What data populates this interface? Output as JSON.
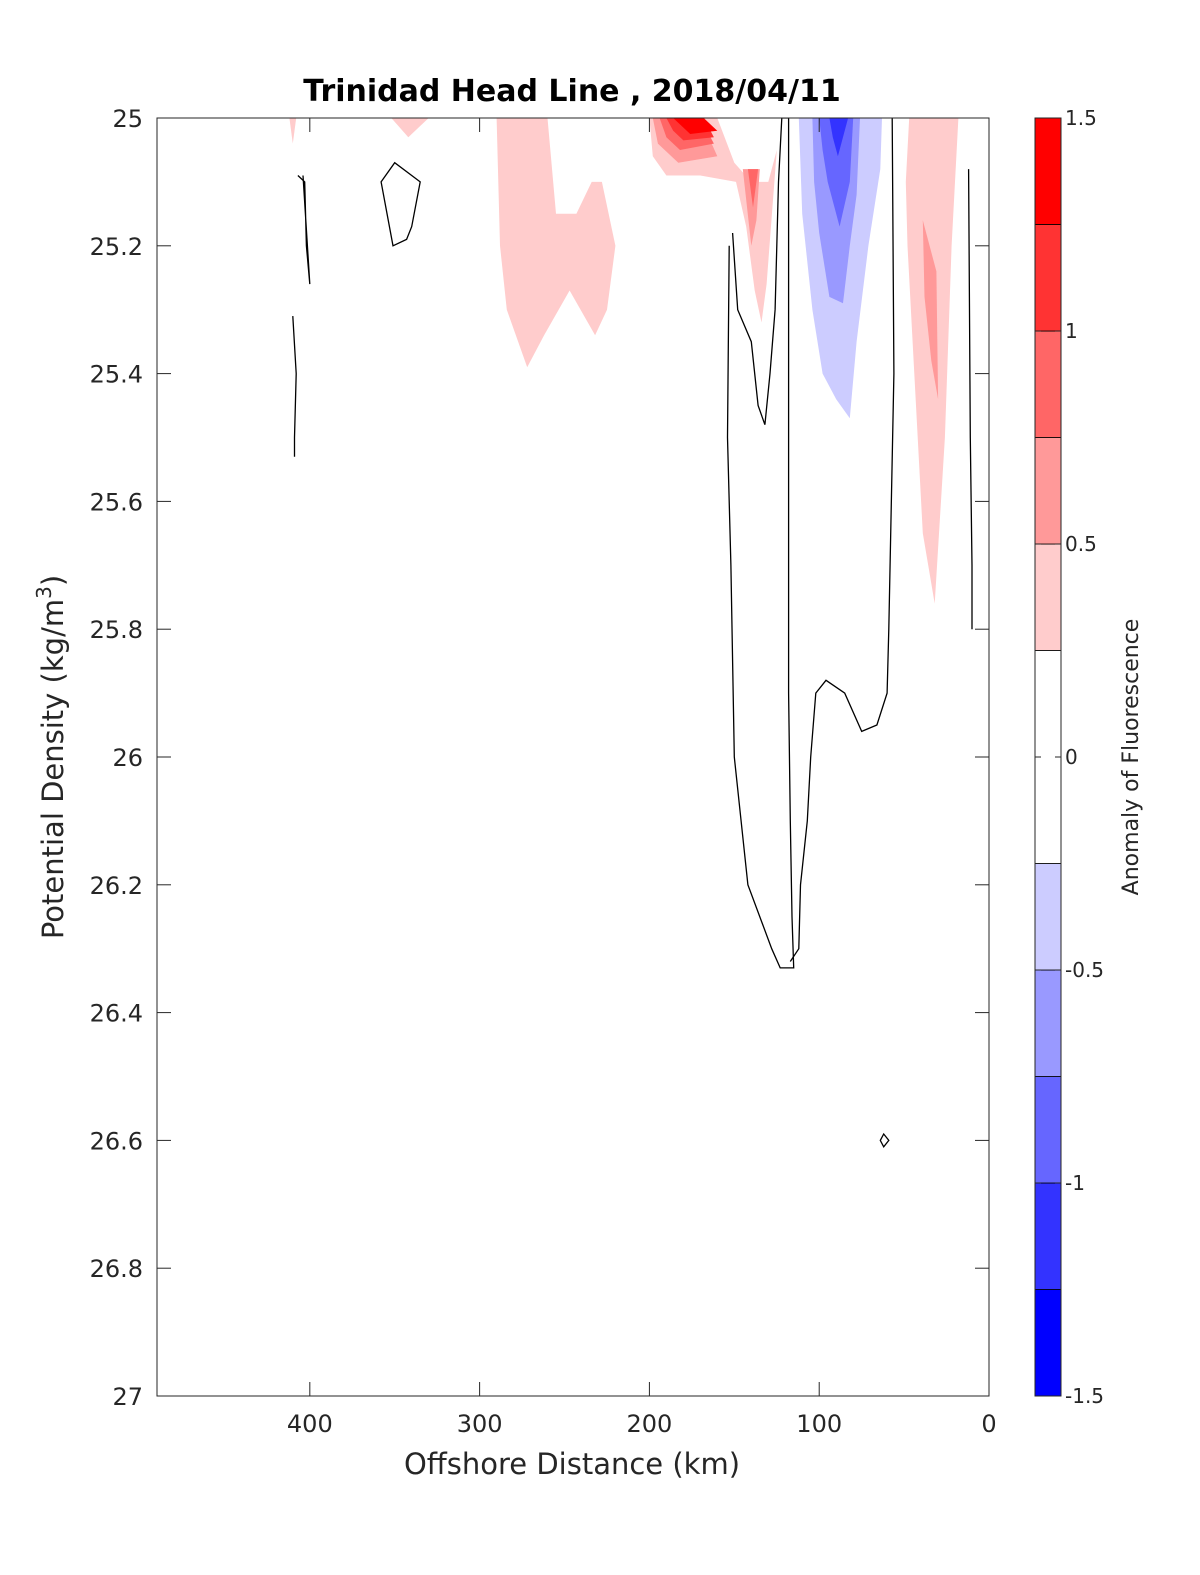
{
  "chart_data": {
    "type": "contour",
    "title": "Trinidad Head Line , 2018/04/11",
    "xlabel": "Offshore Distance (km)",
    "ylabel": "Potential Density (kg/m",
    "ylabel_superscript": "3",
    "ylabel_suffix": ")",
    "xlim": [
      490,
      0
    ],
    "ylim": [
      25,
      27
    ],
    "x_reversed": true,
    "y_reversed": true,
    "x_ticks": [
      400,
      300,
      200,
      100,
      0
    ],
    "x_tick_labels": [
      "400",
      "300",
      "200",
      "100",
      "0"
    ],
    "y_ticks": [
      25,
      25.2,
      25.4,
      25.6,
      25.8,
      26,
      26.2,
      26.4,
      26.6,
      26.8,
      27
    ],
    "y_tick_labels": [
      "25",
      "25.2",
      "25.4",
      "25.6",
      "25.8",
      "26",
      "26.2",
      "26.4",
      "26.6",
      "26.8",
      "27"
    ],
    "grid": false,
    "colorbar": {
      "label": "Anomaly of Fluorescence",
      "limits": [
        -1.5,
        1.5
      ],
      "ticks": [
        1.5,
        1,
        0.5,
        0,
        -0.5,
        -1,
        -1.5
      ],
      "tick_labels": [
        "1.5",
        "1",
        "0.5",
        "0",
        "-0.5",
        "-1",
        "-1.5"
      ],
      "levels": [
        -1.5,
        -1.25,
        -1.0,
        -0.75,
        -0.5,
        -0.25,
        0.25,
        0.5,
        0.75,
        1.0,
        1.25,
        1.5
      ],
      "colors": [
        "#0000ff",
        "#3333ff",
        "#6666ff",
        "#9999ff",
        "#ccccff",
        "#ffffff",
        "#ffcccc",
        "#ff9999",
        "#ff6666",
        "#ff3333",
        "#ff0000"
      ]
    },
    "filled_regions": [
      {
        "level": 0.25,
        "color": "#ffcccc",
        "points": [
          [
            412,
            25
          ],
          [
            408,
            25
          ],
          [
            410,
            25.04
          ]
        ]
      },
      {
        "level": 0.25,
        "color": "#ffcccc",
        "points": [
          [
            352,
            25
          ],
          [
            330,
            25
          ],
          [
            342,
            25.03
          ]
        ]
      },
      {
        "level": 0.25,
        "color": "#ffcccc",
        "points": [
          [
            290,
            25
          ],
          [
            260,
            25
          ],
          [
            255,
            25.15
          ],
          [
            243,
            25.15
          ],
          [
            234,
            25.1
          ],
          [
            228,
            25.1
          ],
          [
            220,
            25.2
          ],
          [
            225,
            25.3
          ],
          [
            232,
            25.34
          ],
          [
            247,
            25.27
          ],
          [
            262,
            25.34
          ],
          [
            272,
            25.39
          ],
          [
            284,
            25.3
          ],
          [
            288,
            25.2
          ]
        ]
      },
      {
        "level": 0.25,
        "color": "#ffcccc",
        "points": [
          [
            200,
            25
          ],
          [
            160,
            25
          ],
          [
            150,
            25.07
          ],
          [
            140,
            25.1
          ],
          [
            130,
            25.1
          ],
          [
            125,
            25.05
          ],
          [
            131,
            25.26
          ],
          [
            134,
            25.32
          ],
          [
            138,
            25.27
          ],
          [
            143,
            25.17
          ],
          [
            149,
            25.1
          ],
          [
            170,
            25.09
          ],
          [
            190,
            25.09
          ],
          [
            198,
            25.06
          ]
        ]
      },
      {
        "level": 0.5,
        "color": "#ff9999",
        "points": [
          [
            198,
            25
          ],
          [
            170,
            25
          ],
          [
            160,
            25.06
          ],
          [
            183,
            25.07
          ],
          [
            195,
            25.04
          ]
        ]
      },
      {
        "level": 0.75,
        "color": "#ff6666",
        "points": [
          [
            194,
            25
          ],
          [
            170,
            25
          ],
          [
            162,
            25.04
          ],
          [
            182,
            25.05
          ],
          [
            190,
            25.03
          ]
        ]
      },
      {
        "level": 1.0,
        "color": "#ff3333",
        "points": [
          [
            190,
            25
          ],
          [
            168,
            25
          ],
          [
            162,
            25.03
          ],
          [
            180,
            25.035
          ],
          [
            186,
            25.02
          ]
        ]
      },
      {
        "level": 1.25,
        "color": "#ff0000",
        "points": [
          [
            186,
            25
          ],
          [
            168,
            25
          ],
          [
            160,
            25.02
          ],
          [
            176,
            25.025
          ]
        ]
      },
      {
        "level": 0.5,
        "color": "#ff9999",
        "points": [
          [
            145,
            25.08
          ],
          [
            135,
            25.08
          ],
          [
            137,
            25.16
          ],
          [
            140,
            25.2
          ]
        ]
      },
      {
        "level": 0.75,
        "color": "#ff6666",
        "points": [
          [
            142,
            25.08
          ],
          [
            136,
            25.08
          ],
          [
            139,
            25.14
          ]
        ]
      },
      {
        "level": 0.25,
        "color": "#ffcccc",
        "points": [
          [
            47,
            25
          ],
          [
            18,
            25
          ],
          [
            22,
            25.2
          ],
          [
            26,
            25.5
          ],
          [
            32,
            25.76
          ],
          [
            39,
            25.65
          ],
          [
            44,
            25.4
          ],
          [
            48,
            25.2
          ],
          [
            49,
            25.1
          ]
        ]
      },
      {
        "level": 0.5,
        "color": "#ff9999",
        "points": [
          [
            39,
            25.16
          ],
          [
            31,
            25.24
          ],
          [
            30,
            25.44
          ],
          [
            34,
            25.38
          ],
          [
            38,
            25.28
          ]
        ]
      },
      {
        "level": -0.25,
        "color": "#ccccff",
        "points": [
          [
            112,
            25
          ],
          [
            63,
            25
          ],
          [
            64,
            25.08
          ],
          [
            71,
            25.2
          ],
          [
            78,
            25.35
          ],
          [
            82,
            25.47
          ],
          [
            90,
            25.44
          ],
          [
            98,
            25.4
          ],
          [
            104,
            25.3
          ],
          [
            110,
            25.15
          ]
        ]
      },
      {
        "level": -0.5,
        "color": "#9999ff",
        "points": [
          [
            104,
            25
          ],
          [
            76,
            25
          ],
          [
            78,
            25.12
          ],
          [
            82,
            25.2
          ],
          [
            86,
            25.29
          ],
          [
            94,
            25.28
          ],
          [
            100,
            25.18
          ],
          [
            103,
            25.1
          ]
        ]
      },
      {
        "level": -0.75,
        "color": "#6666ff",
        "points": [
          [
            100,
            25
          ],
          [
            80,
            25
          ],
          [
            82,
            25.1
          ],
          [
            88,
            25.17
          ],
          [
            95,
            25.1
          ],
          [
            98,
            25.05
          ]
        ]
      },
      {
        "level": -1.0,
        "color": "#3333ff",
        "points": [
          [
            94,
            25
          ],
          [
            83,
            25
          ],
          [
            89,
            25.06
          ],
          [
            92,
            25.03
          ]
        ]
      }
    ],
    "zero_contours": [
      {
        "points": [
          [
            407,
            25.09
          ],
          [
            403,
            25.1
          ],
          [
            402,
            25.2
          ],
          [
            400,
            25.26
          ],
          [
            404,
            25.09
          ]
        ],
        "closed": false
      },
      {
        "points": [
          [
            410,
            25.31
          ],
          [
            408,
            25.4
          ],
          [
            409,
            25.5
          ],
          [
            409,
            25.53
          ]
        ],
        "closed": false
      },
      {
        "points": [
          [
            358,
            25.1
          ],
          [
            350,
            25.07
          ],
          [
            335,
            25.1
          ],
          [
            340,
            25.17
          ],
          [
            343,
            25.19
          ],
          [
            351,
            25.2
          ]
        ],
        "closed": true
      },
      {
        "points": [
          [
            151,
            25.18
          ],
          [
            148,
            25.3
          ],
          [
            140,
            25.35
          ],
          [
            136,
            25.45
          ],
          [
            132,
            25.48
          ],
          [
            129,
            25.4
          ],
          [
            126,
            25.3
          ],
          [
            124,
            25.1
          ],
          [
            122,
            25
          ],
          [
            118,
            25
          ],
          [
            118,
            25.3
          ],
          [
            118,
            25.6
          ],
          [
            118,
            25.9
          ],
          [
            117,
            26.1
          ],
          [
            116,
            26.25
          ],
          [
            115,
            26.33
          ],
          [
            123,
            26.33
          ],
          [
            128,
            26.3
          ],
          [
            142,
            26.2
          ],
          [
            150,
            26.0
          ],
          [
            152,
            25.7
          ],
          [
            154,
            25.5
          ],
          [
            153,
            25.2
          ]
        ],
        "closed": false
      },
      {
        "points": [
          [
            57,
            25
          ],
          [
            56,
            25.4
          ],
          [
            59,
            25.8
          ],
          [
            60,
            25.9
          ],
          [
            66,
            25.95
          ],
          [
            75,
            25.96
          ],
          [
            85,
            25.9
          ],
          [
            96,
            25.88
          ],
          [
            102,
            25.9
          ],
          [
            105,
            26.0
          ],
          [
            107,
            26.1
          ],
          [
            111,
            26.2
          ],
          [
            112,
            26.3
          ],
          [
            117,
            26.32
          ]
        ],
        "closed": false
      },
      {
        "points": [
          [
            12,
            25.08
          ],
          [
            11,
            25.5
          ],
          [
            10,
            25.7
          ],
          [
            10,
            25.8
          ]
        ],
        "closed": false
      },
      {
        "points": [
          [
            62,
            26.59
          ],
          [
            59,
            26.6
          ],
          [
            62,
            26.61
          ],
          [
            64,
            26.6
          ]
        ],
        "closed": true
      }
    ]
  }
}
